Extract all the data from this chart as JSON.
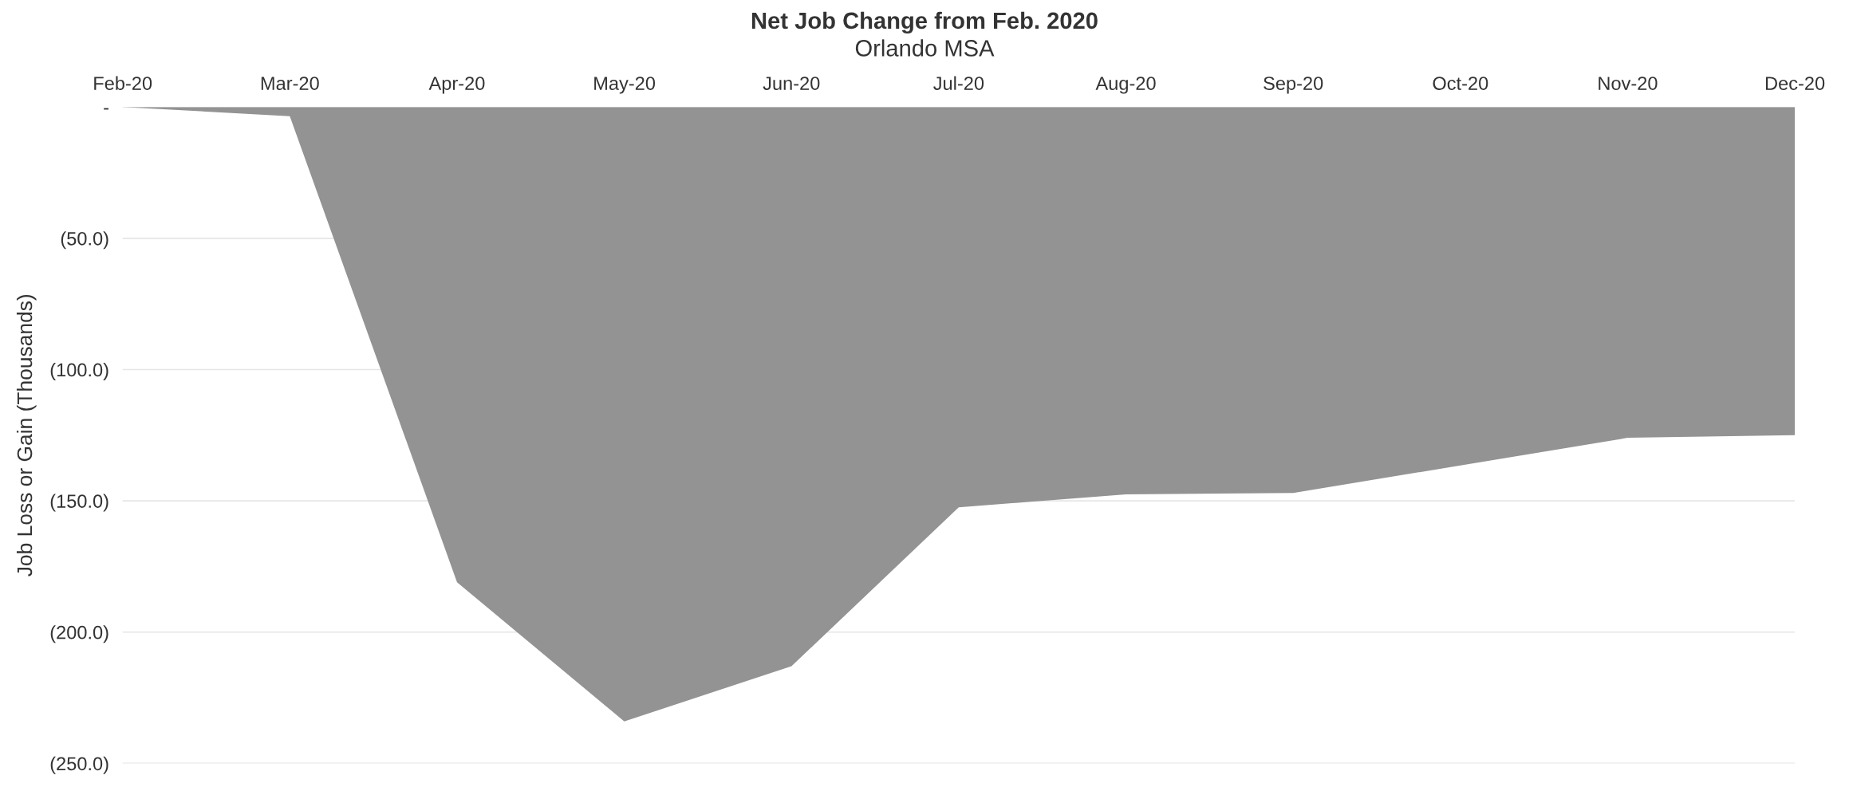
{
  "chart_data": {
    "type": "area",
    "title": "Net Job Change from Feb. 2020",
    "subtitle": "Orlando MSA",
    "ylabel": "Job Loss or Gain (Thousands)",
    "categories": [
      "Feb-20",
      "Mar-20",
      "Apr-20",
      "May-20",
      "Jun-20",
      "Jul-20",
      "Aug-20",
      "Sep-20",
      "Oct-20",
      "Nov-20",
      "Dec-20"
    ],
    "series": [
      {
        "color": "#939393",
        "values": [
          0,
          -3.5,
          -181,
          -234,
          -213,
          -152.5,
          -147.5,
          -147,
          -136.5,
          -126,
          -125
        ]
      }
    ],
    "ylim": [
      -250,
      0
    ],
    "yticks": [
      {
        "value": 0,
        "label": "-"
      },
      {
        "value": -50,
        "label": "(50.0)"
      },
      {
        "value": -100,
        "label": "(100.0)"
      },
      {
        "value": -150,
        "label": "(150.0)"
      },
      {
        "value": -200,
        "label": "(200.0)"
      },
      {
        "value": -250,
        "label": "(250.0)"
      }
    ],
    "grid": "y"
  }
}
